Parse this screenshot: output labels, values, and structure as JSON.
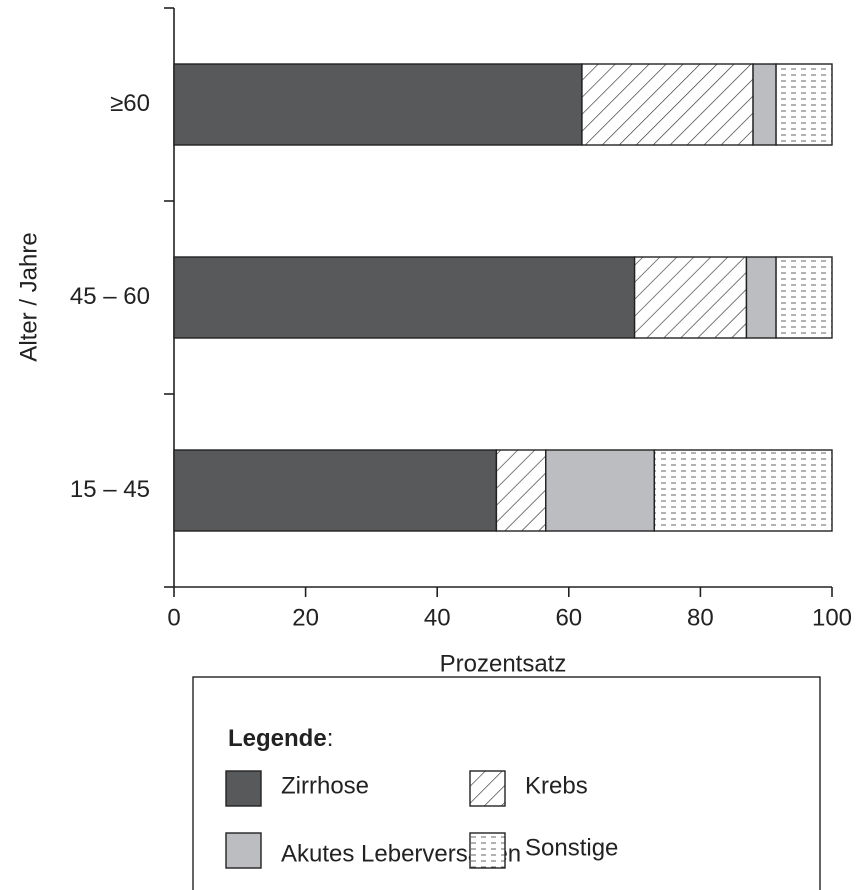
{
  "chart_data": {
    "type": "stacked-barh",
    "x_label": "Prozentsatz",
    "y_label": "Alter / Jahre",
    "categories": [
      "15 – 45",
      "45 – 60",
      "≥60"
    ],
    "series": [
      {
        "name": "Zirrhose",
        "color": "#58595b",
        "pattern": "solid",
        "values": [
          49,
          70,
          62
        ]
      },
      {
        "name": "Krebs",
        "color": "#ffffff",
        "pattern": "hatch",
        "values": [
          7.5,
          17,
          26
        ]
      },
      {
        "name": "Akutes Leberversagen",
        "color": "#bcbdc0",
        "pattern": "solid",
        "values": [
          16.5,
          4.5,
          3.5
        ]
      },
      {
        "name": "Sonstige",
        "color": "#ffffff",
        "pattern": "dash",
        "values": [
          27,
          8.5,
          8.5
        ]
      }
    ],
    "xlim": [
      0,
      100
    ],
    "xticks": [
      0,
      20,
      40,
      60,
      80,
      100
    ],
    "legend_title": "Legende",
    "legend_title_suffix": ":"
  }
}
